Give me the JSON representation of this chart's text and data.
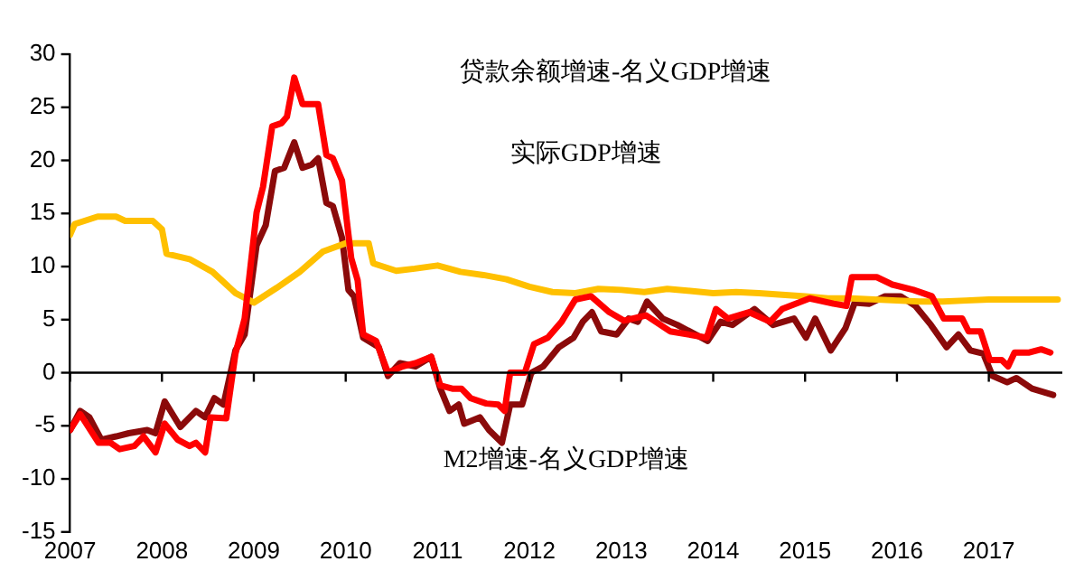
{
  "chart_data": {
    "type": "line",
    "xlim": [
      2007,
      2017.8
    ],
    "xticks": [
      2007,
      2008,
      2009,
      2010,
      2011,
      2012,
      2013,
      2014,
      2015,
      2016,
      2017
    ],
    "ylim": [
      -15,
      30
    ],
    "yticks": [
      -15,
      -10,
      -5,
      0,
      5,
      10,
      15,
      20,
      25,
      30
    ],
    "annotations": [
      "贷款余额增速-名义GDP增速",
      "实际GDP增速",
      "M2增速-名义GDP增速"
    ],
    "ref_lines": [
      {
        "axis": "y",
        "value": 0,
        "color": "#000000"
      }
    ],
    "grid": false,
    "legend": false,
    "marker": "none",
    "line_style": "solid",
    "series": [
      {
        "color": "#ff0000",
        "x": [
          2007.0,
          2007.11,
          2007.31,
          2007.44,
          2007.54,
          2007.7,
          2007.8,
          2007.93,
          2008.03,
          2008.17,
          2008.3,
          2008.37,
          2008.47,
          2008.53,
          2008.7,
          2008.8,
          2008.9,
          2009.03,
          2009.1,
          2009.2,
          2009.3,
          2009.36,
          2009.44,
          2009.53,
          2009.7,
          2009.79,
          2009.86,
          2009.96,
          2010.06,
          2010.13,
          2010.19,
          2010.33,
          2010.46,
          2010.62,
          2010.76,
          2010.93,
          2011.03,
          2011.16,
          2011.26,
          2011.36,
          2011.53,
          2011.66,
          2011.73,
          2011.79,
          2011.95,
          2012.05,
          2012.2,
          2012.35,
          2012.5,
          2012.67,
          2012.87,
          2013.03,
          2013.27,
          2013.53,
          2013.93,
          2014.03,
          2014.16,
          2014.39,
          2014.62,
          2014.75,
          2015.05,
          2015.31,
          2015.45,
          2015.51,
          2015.78,
          2015.95,
          2016.18,
          2016.38,
          2016.51,
          2016.71,
          2016.78,
          2016.91,
          2017.01,
          2017.14,
          2017.21,
          2017.28,
          2017.44,
          2017.57,
          2017.67
        ],
        "values": [
          -5.4,
          -3.9,
          -6.6,
          -6.6,
          -7.2,
          -6.9,
          -6.0,
          -7.5,
          -4.8,
          -6.3,
          -6.9,
          -6.6,
          -7.5,
          -4.2,
          -4.3,
          1.8,
          5.1,
          15.1,
          17.5,
          23.2,
          23.5,
          24.1,
          27.8,
          25.3,
          25.3,
          20.5,
          20.2,
          18.1,
          10.8,
          8.7,
          3.6,
          3.0,
          0,
          0.6,
          0.9,
          1.5,
          -1.2,
          -1.5,
          -1.5,
          -2.4,
          -2.9,
          -3.0,
          -3.6,
          0,
          0,
          2.7,
          3.3,
          4.8,
          6.9,
          7.2,
          5.7,
          4.9,
          5.4,
          3.9,
          3.3,
          6.0,
          5.1,
          5.7,
          4.8,
          6.0,
          7.0,
          6.5,
          6.3,
          9.0,
          9.0,
          8.3,
          7.8,
          7.2,
          5.1,
          5.1,
          3.9,
          3.9,
          1.2,
          1.2,
          0.6,
          1.9,
          1.9,
          2.2,
          1.9
        ]
      },
      {
        "color": "#ffc000",
        "x": [
          2007.0,
          2007.05,
          2007.3,
          2007.5,
          2007.6,
          2007.9,
          2008.0,
          2008.05,
          2008.3,
          2008.55,
          2008.8,
          2009.0,
          2009.25,
          2009.5,
          2009.75,
          2010.0,
          2010.25,
          2010.3,
          2010.55,
          2010.75,
          2011.0,
          2011.25,
          2011.5,
          2011.75,
          2012.0,
          2012.25,
          2012.5,
          2012.75,
          2013.0,
          2013.25,
          2013.5,
          2013.75,
          2014.0,
          2014.25,
          2014.5,
          2015.0,
          2015.25,
          2015.5,
          2016.0,
          2016.25,
          2016.5,
          2016.75,
          2017.0,
          2017.75
        ],
        "values": [
          13,
          14,
          14.7,
          14.7,
          14.3,
          14.3,
          13.5,
          11.2,
          10.7,
          9.5,
          7.5,
          6.6,
          8,
          9.5,
          11.4,
          12.2,
          12.2,
          10.3,
          9.6,
          9.8,
          10.1,
          9.5,
          9.2,
          8.8,
          8.1,
          7.6,
          7.5,
          7.9,
          7.8,
          7.6,
          7.9,
          7.7,
          7.5,
          7.6,
          7.5,
          7.2,
          7.0,
          7.0,
          6.8,
          6.7,
          6.7,
          6.8,
          6.9,
          6.9
        ]
      },
      {
        "color": "#8b0a0a",
        "x": [
          2007.0,
          2007.11,
          2007.21,
          2007.34,
          2007.5,
          2007.64,
          2007.84,
          2007.93,
          2008.03,
          2008.2,
          2008.37,
          2008.47,
          2008.57,
          2008.67,
          2008.8,
          2008.9,
          2009.03,
          2009.13,
          2009.23,
          2009.33,
          2009.44,
          2009.53,
          2009.63,
          2009.7,
          2009.79,
          2009.86,
          2009.96,
          2010.03,
          2010.09,
          2010.19,
          2010.36,
          2010.46,
          2010.59,
          2010.76,
          2010.93,
          2011.03,
          2011.13,
          2011.23,
          2011.29,
          2011.46,
          2011.56,
          2011.7,
          2011.79,
          2011.92,
          2012.02,
          2012.15,
          2012.32,
          2012.48,
          2012.58,
          2012.68,
          2012.78,
          2012.95,
          2013.08,
          2013.18,
          2013.28,
          2013.45,
          2013.61,
          2013.94,
          2014.08,
          2014.21,
          2014.45,
          2014.65,
          2014.88,
          2015.01,
          2015.11,
          2015.28,
          2015.44,
          2015.54,
          2015.7,
          2015.87,
          2016.04,
          2016.2,
          2016.37,
          2016.54,
          2016.67,
          2016.8,
          2016.94,
          2017.04,
          2017.2,
          2017.3,
          2017.47,
          2017.7
        ],
        "values": [
          -5.4,
          -3.6,
          -4.2,
          -6.3,
          -6,
          -5.7,
          -5.4,
          -5.7,
          -2.7,
          -5.1,
          -3.6,
          -4.2,
          -2.4,
          -3.0,
          2.1,
          3.6,
          12,
          13.9,
          19,
          19.3,
          21.7,
          19.3,
          19.6,
          20.2,
          16,
          15.7,
          12.7,
          7.8,
          7.2,
          3.3,
          2.4,
          -0.3,
          0.9,
          0.6,
          1.5,
          -1.5,
          -3.6,
          -3,
          -4.8,
          -4.2,
          -5.4,
          -6.6,
          -3,
          -3,
          0,
          0.6,
          2.4,
          3.3,
          4.8,
          5.7,
          3.9,
          3.6,
          5.1,
          4.8,
          6.7,
          5.1,
          4.5,
          3.0,
          4.8,
          4.5,
          6.0,
          4.5,
          5.1,
          3.3,
          5.1,
          2.1,
          4.2,
          6.6,
          6.5,
          7.2,
          7.2,
          6.3,
          4.5,
          2.4,
          3.6,
          2.1,
          1.8,
          -0.3,
          -0.9,
          -0.5,
          -1.5,
          -2.1
        ]
      }
    ]
  }
}
